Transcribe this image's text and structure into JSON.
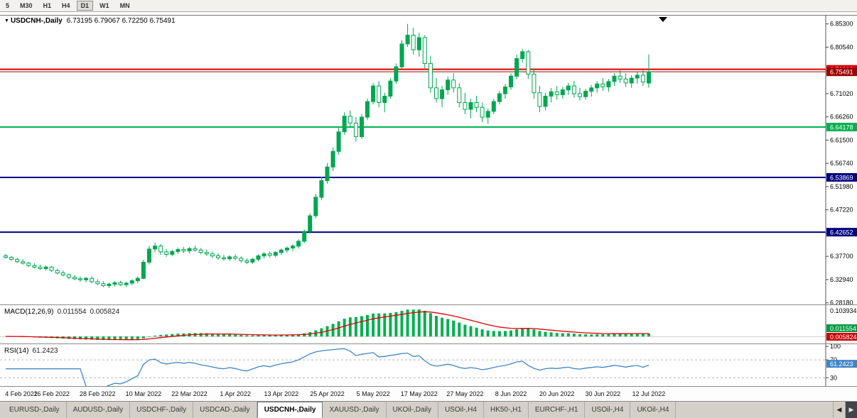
{
  "toolbar": {
    "timeframes": [
      {
        "label": "5",
        "active": false
      },
      {
        "label": "M30",
        "active": false
      },
      {
        "label": "H1",
        "active": false
      },
      {
        "label": "H4",
        "active": false
      },
      {
        "label": "D1",
        "active": true
      },
      {
        "label": "W1",
        "active": false
      },
      {
        "label": "MN",
        "active": false
      }
    ]
  },
  "main_chart": {
    "symbol_marker": "▼",
    "symbol_title": "USDCNH-,Daily",
    "ohlc": "6.73195 6.79067 6.72250 6.75491"
  },
  "macd_panel": {
    "label": "MACD(12,26,9)",
    "value_main": "0.011554",
    "value_signal": "0.005824",
    "axis_max": "0.103934"
  },
  "rsi_panel": {
    "label": "RSI(14)",
    "value": "61.2423",
    "axis_labels": [
      "100",
      "70",
      "30"
    ]
  },
  "colors": {
    "bull": "#00a651",
    "bear_fill": "#ffffff",
    "macd_hist": "#00b050",
    "macd_signal": "#e00000",
    "rsi_line": "#3e86c6",
    "level_red": "#d60000",
    "level_bid_red": "#a00000",
    "level_green": "#00b050",
    "level_blue": "#000080"
  },
  "chart_data": {
    "type": "candlestick",
    "symbol": "USDCNH",
    "timeframe": "Daily",
    "title": "USDCNH-,Daily 6.73195 6.79067 6.72250 6.75491",
    "price_range": [
      6.277,
      6.87
    ],
    "price_axis_labels": [
      6.853,
      6.8054,
      6.7578,
      6.7102,
      6.6626,
      6.615,
      6.5674,
      6.5198,
      6.4722,
      6.4246,
      6.377,
      6.3294,
      6.2818
    ],
    "x_labels": [
      "4 Feb 2022",
      "16 Feb 2022",
      "28 Feb 2022",
      "10 Mar 2022",
      "22 Mar 2022",
      "1 Apr 2022",
      "13 Apr 2022",
      "25 Apr 2022",
      "5 May 2022",
      "17 May 2022",
      "27 May 2022",
      "8 Jun 2022",
      "20 Jun 2022",
      "30 Jun 2022",
      "12 Jul 2022"
    ],
    "levels": [
      {
        "price": 6.76002,
        "label": "6.76002",
        "color": "#d60000",
        "width": 2
      },
      {
        "price": 6.75491,
        "label": "6.75491",
        "color": "#a00000",
        "width": 1
      },
      {
        "price": 6.64178,
        "label": "6.64178",
        "color": "#00b050",
        "width": 2
      },
      {
        "price": 6.53869,
        "label": "6.53869",
        "color": "#000080",
        "width": 2
      },
      {
        "price": 6.42652,
        "label": "6.42652",
        "color": "#000080",
        "width": 2
      }
    ],
    "indicators": [
      {
        "name": "MACD",
        "params": [
          12,
          26,
          9
        ],
        "current_main": 0.011554,
        "current_signal": 0.005824,
        "axis_max": 0.103934
      },
      {
        "name": "RSI",
        "params": [
          14
        ],
        "current": 61.2423,
        "levels": [
          70,
          30
        ]
      }
    ],
    "candles_ohlc": [
      [
        6.378,
        6.382,
        6.372,
        6.375
      ],
      [
        6.375,
        6.378,
        6.368,
        6.371
      ],
      [
        6.371,
        6.374,
        6.363,
        6.366
      ],
      [
        6.366,
        6.371,
        6.36,
        6.363
      ],
      [
        6.363,
        6.366,
        6.355,
        6.358
      ],
      [
        6.358,
        6.363,
        6.352,
        6.355
      ],
      [
        6.355,
        6.36,
        6.349,
        6.352
      ],
      [
        6.352,
        6.358,
        6.348,
        6.355
      ],
      [
        6.355,
        6.357,
        6.345,
        6.348
      ],
      [
        6.348,
        6.352,
        6.34,
        6.343
      ],
      [
        6.343,
        6.348,
        6.336,
        6.339
      ],
      [
        6.339,
        6.342,
        6.33,
        6.334
      ],
      [
        6.334,
        6.339,
        6.328,
        6.331
      ],
      [
        6.331,
        6.336,
        6.325,
        6.329
      ],
      [
        6.329,
        6.335,
        6.324,
        6.332
      ],
      [
        6.332,
        6.336,
        6.322,
        6.325
      ],
      [
        6.325,
        6.33,
        6.318,
        6.321
      ],
      [
        6.321,
        6.326,
        6.314,
        6.317
      ],
      [
        6.317,
        6.323,
        6.312,
        6.32
      ],
      [
        6.32,
        6.326,
        6.315,
        6.323
      ],
      [
        6.323,
        6.327,
        6.316,
        6.319
      ],
      [
        6.319,
        6.325,
        6.314,
        6.322
      ],
      [
        6.322,
        6.33,
        6.318,
        6.327
      ],
      [
        6.327,
        6.336,
        6.322,
        6.332
      ],
      [
        6.332,
        6.37,
        6.33,
        6.365
      ],
      [
        6.365,
        6.398,
        6.36,
        6.392
      ],
      [
        6.392,
        6.405,
        6.385,
        6.398
      ],
      [
        6.398,
        6.402,
        6.38,
        6.386
      ],
      [
        6.386,
        6.392,
        6.376,
        6.381
      ],
      [
        6.381,
        6.39,
        6.377,
        6.387
      ],
      [
        6.387,
        6.395,
        6.382,
        6.391
      ],
      [
        6.391,
        6.396,
        6.384,
        6.388
      ],
      [
        6.388,
        6.396,
        6.383,
        6.393
      ],
      [
        6.393,
        6.399,
        6.386,
        6.39
      ],
      [
        6.39,
        6.394,
        6.381,
        6.385
      ],
      [
        6.385,
        6.391,
        6.378,
        6.382
      ],
      [
        6.382,
        6.387,
        6.374,
        6.378
      ],
      [
        6.378,
        6.383,
        6.37,
        6.374
      ],
      [
        6.374,
        6.38,
        6.368,
        6.372
      ],
      [
        6.372,
        6.379,
        6.368,
        6.376
      ],
      [
        6.376,
        6.381,
        6.369,
        6.373
      ],
      [
        6.373,
        6.377,
        6.364,
        6.368
      ],
      [
        6.368,
        6.373,
        6.361,
        6.365
      ],
      [
        6.365,
        6.374,
        6.362,
        6.371
      ],
      [
        6.371,
        6.381,
        6.367,
        6.378
      ],
      [
        6.378,
        6.386,
        6.373,
        6.382
      ],
      [
        6.382,
        6.387,
        6.375,
        6.379
      ],
      [
        6.379,
        6.388,
        6.375,
        6.385
      ],
      [
        6.385,
        6.393,
        6.38,
        6.39
      ],
      [
        6.39,
        6.397,
        6.384,
        6.394
      ],
      [
        6.394,
        6.402,
        6.388,
        6.398
      ],
      [
        6.398,
        6.412,
        6.393,
        6.408
      ],
      [
        6.408,
        6.432,
        6.404,
        6.428
      ],
      [
        6.428,
        6.465,
        6.424,
        6.46
      ],
      [
        6.46,
        6.505,
        6.455,
        6.498
      ],
      [
        6.498,
        6.54,
        6.492,
        6.532
      ],
      [
        6.532,
        6.568,
        6.526,
        6.56
      ],
      [
        6.56,
        6.6,
        6.552,
        6.592
      ],
      [
        6.592,
        6.64,
        6.585,
        6.632
      ],
      [
        6.632,
        6.672,
        6.626,
        6.664
      ],
      [
        6.664,
        6.676,
        6.64,
        6.65
      ],
      [
        6.65,
        6.662,
        6.612,
        6.622
      ],
      [
        6.622,
        6.668,
        6.618,
        6.662
      ],
      [
        6.662,
        6.7,
        6.656,
        6.694
      ],
      [
        6.694,
        6.732,
        6.688,
        6.726
      ],
      [
        6.726,
        6.736,
        6.682,
        6.692
      ],
      [
        6.692,
        6.712,
        6.672,
        6.705
      ],
      [
        6.705,
        6.742,
        6.7,
        6.736
      ],
      [
        6.736,
        6.772,
        6.73,
        6.765
      ],
      [
        6.765,
        6.82,
        6.76,
        6.812
      ],
      [
        6.812,
        6.853,
        6.806,
        6.83
      ],
      [
        6.83,
        6.845,
        6.79,
        6.8
      ],
      [
        6.8,
        6.835,
        6.786,
        6.825
      ],
      [
        6.825,
        6.83,
        6.762,
        6.772
      ],
      [
        6.772,
        6.788,
        6.712,
        6.722
      ],
      [
        6.722,
        6.742,
        6.692,
        6.7
      ],
      [
        6.7,
        6.726,
        6.682,
        6.718
      ],
      [
        6.718,
        6.745,
        6.708,
        6.738
      ],
      [
        6.738,
        6.752,
        6.712,
        6.722
      ],
      [
        6.722,
        6.732,
        6.682,
        6.692
      ],
      [
        6.692,
        6.712,
        6.668,
        6.678
      ],
      [
        6.678,
        6.7,
        6.66,
        6.692
      ],
      [
        6.692,
        6.706,
        6.672,
        6.682
      ],
      [
        6.682,
        6.692,
        6.652,
        6.662
      ],
      [
        6.662,
        6.68,
        6.648,
        6.674
      ],
      [
        6.674,
        6.7,
        6.668,
        6.694
      ],
      [
        6.694,
        6.716,
        6.688,
        6.71
      ],
      [
        6.71,
        6.73,
        6.7,
        6.724
      ],
      [
        6.724,
        6.752,
        6.718,
        6.746
      ],
      [
        6.746,
        6.79,
        6.74,
        6.782
      ],
      [
        6.782,
        6.802,
        6.774,
        6.796
      ],
      [
        6.796,
        6.8,
        6.74,
        6.75
      ],
      [
        6.75,
        6.762,
        6.7,
        6.712
      ],
      [
        6.712,
        6.726,
        6.672,
        6.684
      ],
      [
        6.684,
        6.712,
        6.676,
        6.705
      ],
      [
        6.705,
        6.722,
        6.692,
        6.714
      ],
      [
        6.714,
        6.726,
        6.698,
        6.708
      ],
      [
        6.708,
        6.724,
        6.7,
        6.718
      ],
      [
        6.718,
        6.732,
        6.708,
        6.726
      ],
      [
        6.726,
        6.736,
        6.702,
        6.71
      ],
      [
        6.71,
        6.722,
        6.696,
        6.704
      ],
      [
        6.704,
        6.72,
        6.698,
        6.715
      ],
      [
        6.715,
        6.728,
        6.704,
        6.722
      ],
      [
        6.722,
        6.736,
        6.712,
        6.73
      ],
      [
        6.73,
        6.742,
        6.716,
        6.724
      ],
      [
        6.724,
        6.74,
        6.714,
        6.735
      ],
      [
        6.735,
        6.752,
        6.726,
        6.746
      ],
      [
        6.746,
        6.758,
        6.732,
        6.74
      ],
      [
        6.74,
        6.752,
        6.724,
        6.732
      ],
      [
        6.732,
        6.748,
        6.722,
        6.742
      ],
      [
        6.742,
        6.756,
        6.73,
        6.748
      ],
      [
        6.748,
        6.758,
        6.726,
        6.734
      ],
      [
        6.73195,
        6.79067,
        6.7225,
        6.75491
      ]
    ]
  },
  "tabbar": {
    "arrow_left": "◀",
    "arrow_right": "▶",
    "tabs": [
      {
        "label": "EURUSD-,Daily",
        "active": false
      },
      {
        "label": "AUDUSD-,Daily",
        "active": false
      },
      {
        "label": "USDCHF-,Daily",
        "active": false
      },
      {
        "label": "USDCAD-,Daily",
        "active": false
      },
      {
        "label": "USDCNH-,Daily",
        "active": true
      },
      {
        "label": "XAUUSD-,Daily",
        "active": false
      },
      {
        "label": "UKOil-,Daily",
        "active": false
      },
      {
        "label": "USOil-,H4",
        "active": false
      },
      {
        "label": "HK50-,H1",
        "active": false
      },
      {
        "label": "EURCHF-,H1",
        "active": false
      },
      {
        "label": "USOil-,H4",
        "active": false
      },
      {
        "label": "UKOil-,H4",
        "active": false
      }
    ]
  }
}
